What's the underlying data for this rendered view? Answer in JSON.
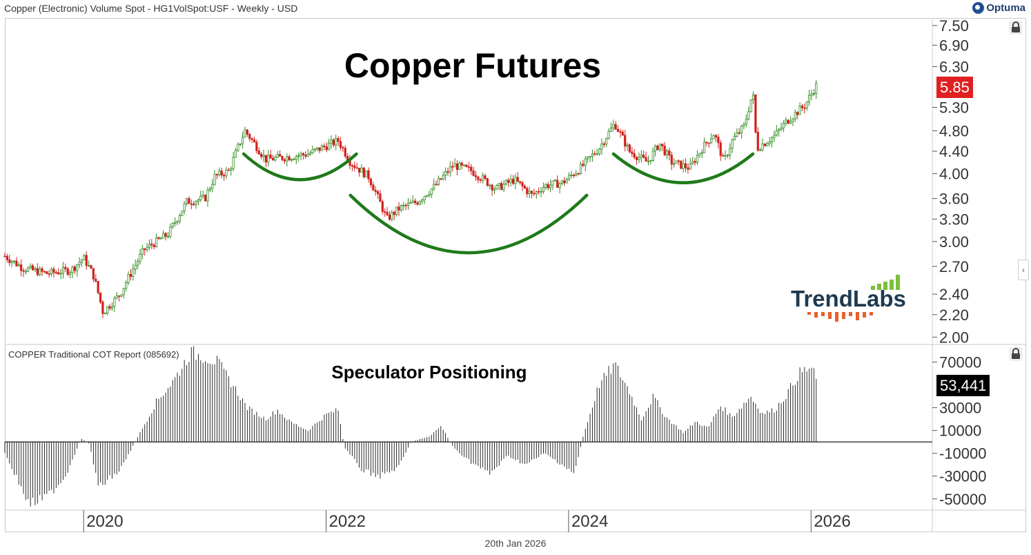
{
  "header": {
    "title": "Copper (Electronic) Volume Spot - HG1VolSpot:USF - Weekly - USD",
    "brand": "Optuma"
  },
  "footer": {
    "date": "20th Jan 2026"
  },
  "watermark": {
    "text": "TrendLabs"
  },
  "colors": {
    "up": "#2e8b1f",
    "down": "#d0211c",
    "arc": "#1f7a1a",
    "last_price_bg": "#e02020",
    "last_cot_bg": "#000000"
  },
  "chart_data": [
    {
      "type": "candlestick",
      "title": "Copper Futures",
      "y_scale": "log",
      "ylim": [
        1.95,
        7.7
      ],
      "y_ticks": [
        "7.50",
        "6.90",
        "6.30",
        "5.85",
        "5.30",
        "4.80",
        "4.40",
        "4.00",
        "3.60",
        "3.30",
        "3.00",
        "2.70",
        "2.40",
        "2.20",
        "2.00"
      ],
      "y_tick_values": [
        7.5,
        6.9,
        6.3,
        5.3,
        4.8,
        4.4,
        4.0,
        3.6,
        3.3,
        3.0,
        2.7,
        2.4,
        2.2,
        2.0
      ],
      "last_value": "5.85",
      "x_ticks": [
        "2020",
        "2022",
        "2024",
        "2026"
      ],
      "x_tick_years": [
        2020,
        2022,
        2024,
        2026
      ],
      "x_range": [
        2019.35,
        2027.0
      ],
      "close_anchors": [
        [
          2019.35,
          2.82
        ],
        [
          2019.5,
          2.68
        ],
        [
          2019.7,
          2.62
        ],
        [
          2019.9,
          2.66
        ],
        [
          2020.0,
          2.8
        ],
        [
          2020.08,
          2.6
        ],
        [
          2020.16,
          2.22
        ],
        [
          2020.3,
          2.4
        ],
        [
          2020.5,
          2.9
        ],
        [
          2020.7,
          3.1
        ],
        [
          2020.85,
          3.55
        ],
        [
          2021.0,
          3.6
        ],
        [
          2021.08,
          3.95
        ],
        [
          2021.2,
          4.05
        ],
        [
          2021.33,
          4.8
        ],
        [
          2021.5,
          4.25
        ],
        [
          2021.7,
          4.3
        ],
        [
          2021.85,
          4.35
        ],
        [
          2022.0,
          4.5
        ],
        [
          2022.1,
          4.6
        ],
        [
          2022.2,
          4.2
        ],
        [
          2022.35,
          3.95
        ],
        [
          2022.5,
          3.3
        ],
        [
          2022.6,
          3.45
        ],
        [
          2022.75,
          3.55
        ],
        [
          2022.9,
          3.8
        ],
        [
          2023.05,
          4.15
        ],
        [
          2023.2,
          4.05
        ],
        [
          2023.4,
          3.75
        ],
        [
          2023.55,
          3.9
        ],
        [
          2023.7,
          3.65
        ],
        [
          2023.8,
          3.8
        ],
        [
          2023.95,
          3.85
        ],
        [
          2024.1,
          4.1
        ],
        [
          2024.25,
          4.45
        ],
        [
          2024.38,
          4.95
        ],
        [
          2024.5,
          4.4
        ],
        [
          2024.65,
          4.2
        ],
        [
          2024.75,
          4.55
        ],
        [
          2024.85,
          4.2
        ],
        [
          2025.0,
          4.1
        ],
        [
          2025.1,
          4.45
        ],
        [
          2025.2,
          4.75
        ],
        [
          2025.28,
          4.2
        ],
        [
          2025.35,
          4.6
        ],
        [
          2025.45,
          4.9
        ],
        [
          2025.52,
          5.65
        ],
        [
          2025.55,
          4.45
        ],
        [
          2025.7,
          4.7
        ],
        [
          2025.8,
          5.0
        ],
        [
          2025.95,
          5.35
        ],
        [
          2026.05,
          5.85
        ]
      ],
      "annotations": [
        {
          "type": "arc",
          "from": [
            2021.32,
            4.35
          ],
          "to": [
            2022.25,
            4.35
          ],
          "depth": 3.9
        },
        {
          "type": "arc",
          "from": [
            2022.2,
            3.65
          ],
          "to": [
            2024.15,
            3.65
          ],
          "depth": 2.86
        },
        {
          "type": "arc",
          "from": [
            2024.37,
            4.35
          ],
          "to": [
            2025.52,
            4.35
          ],
          "depth": 3.85
        }
      ]
    },
    {
      "type": "bar",
      "title": "COPPER Traditional COT Report (085692)",
      "subtitle": "Speculator Positioning",
      "ylim": [
        -58000,
        80000
      ],
      "y_ticks": [
        "70000",
        "53,441",
        "30000",
        "10000",
        "-10000",
        "-30000",
        "-50000"
      ],
      "y_tick_values": [
        70000,
        30000,
        10000,
        -10000,
        -30000,
        -50000
      ],
      "last_value": "53,441",
      "value_anchors": [
        [
          2019.35,
          -10000
        ],
        [
          2019.45,
          -32000
        ],
        [
          2019.55,
          -55000
        ],
        [
          2019.7,
          -48000
        ],
        [
          2019.85,
          -30000
        ],
        [
          2019.98,
          3000
        ],
        [
          2020.05,
          -2000
        ],
        [
          2020.12,
          -40000
        ],
        [
          2020.3,
          -25000
        ],
        [
          2020.45,
          5000
        ],
        [
          2020.6,
          35000
        ],
        [
          2020.75,
          55000
        ],
        [
          2020.88,
          78000
        ],
        [
          2021.0,
          75000
        ],
        [
          2021.1,
          70000
        ],
        [
          2021.2,
          55000
        ],
        [
          2021.35,
          30000
        ],
        [
          2021.5,
          20000
        ],
        [
          2021.6,
          28000
        ],
        [
          2021.7,
          18000
        ],
        [
          2021.85,
          10000
        ],
        [
          2022.0,
          24000
        ],
        [
          2022.1,
          28000
        ],
        [
          2022.15,
          -5000
        ],
        [
          2022.3,
          -25000
        ],
        [
          2022.45,
          -30000
        ],
        [
          2022.6,
          -22000
        ],
        [
          2022.7,
          0
        ],
        [
          2022.85,
          5000
        ],
        [
          2022.95,
          14000
        ],
        [
          2023.05,
          -5000
        ],
        [
          2023.2,
          -18000
        ],
        [
          2023.35,
          -28000
        ],
        [
          2023.5,
          -12000
        ],
        [
          2023.65,
          -20000
        ],
        [
          2023.8,
          -10000
        ],
        [
          2023.95,
          -20000
        ],
        [
          2024.05,
          -28000
        ],
        [
          2024.12,
          5000
        ],
        [
          2024.25,
          50000
        ],
        [
          2024.38,
          68000
        ],
        [
          2024.5,
          45000
        ],
        [
          2024.6,
          20000
        ],
        [
          2024.7,
          40000
        ],
        [
          2024.8,
          22000
        ],
        [
          2024.95,
          8000
        ],
        [
          2025.05,
          18000
        ],
        [
          2025.15,
          12000
        ],
        [
          2025.25,
          32000
        ],
        [
          2025.35,
          22000
        ],
        [
          2025.5,
          40000
        ],
        [
          2025.6,
          25000
        ],
        [
          2025.7,
          28000
        ],
        [
          2025.8,
          42000
        ],
        [
          2025.9,
          60000
        ],
        [
          2026.0,
          65000
        ],
        [
          2026.05,
          53441
        ]
      ]
    }
  ]
}
